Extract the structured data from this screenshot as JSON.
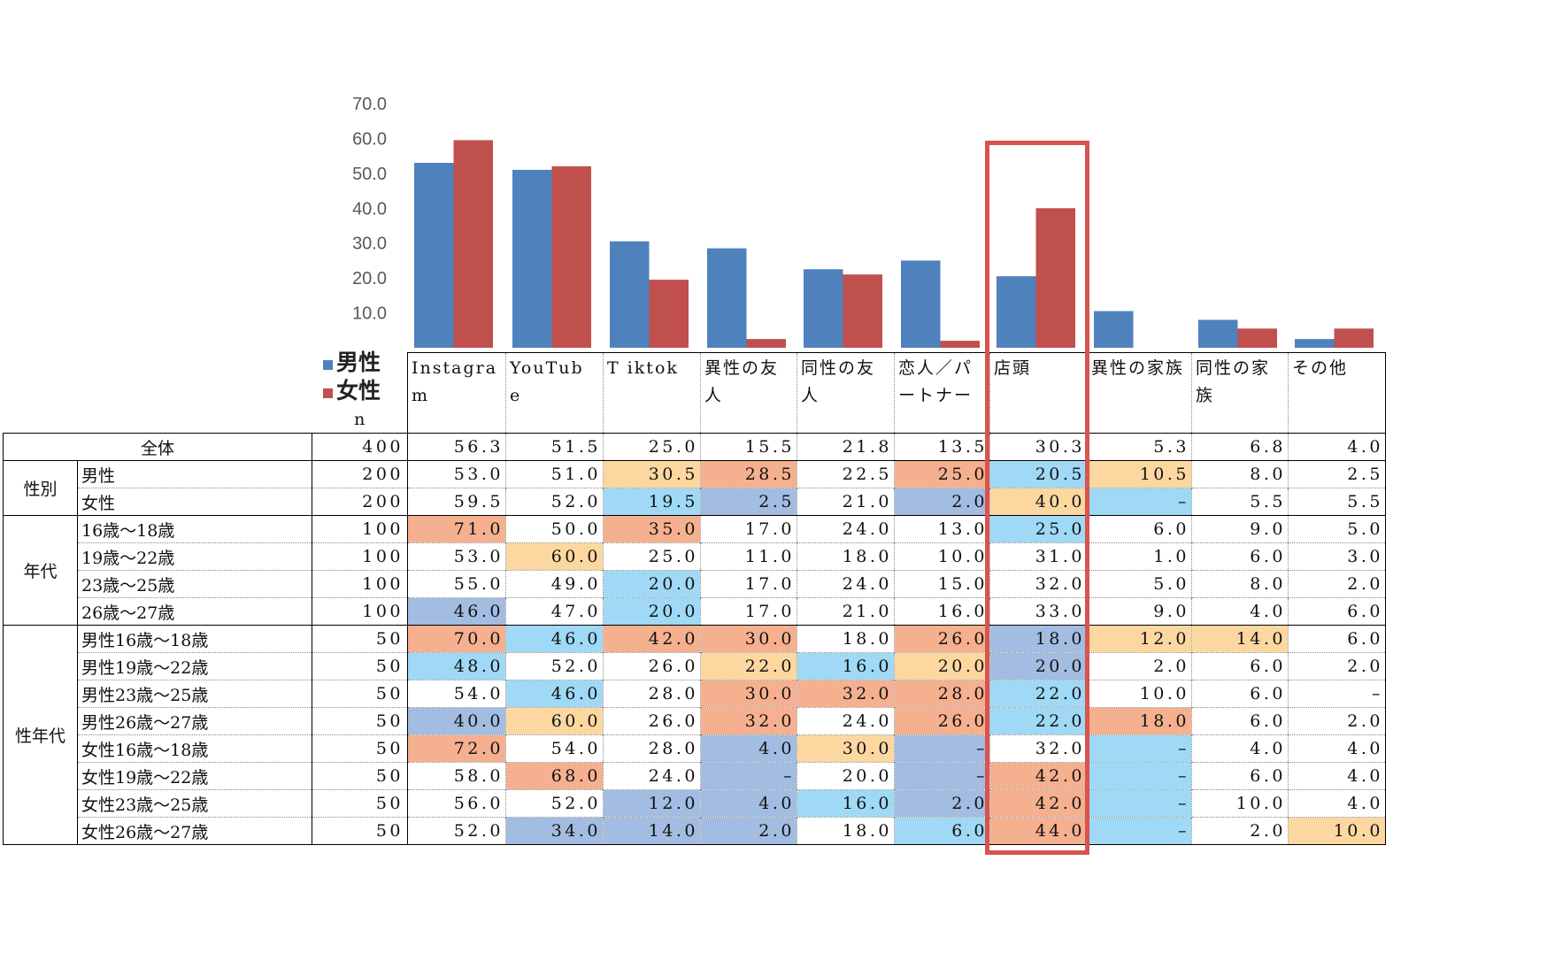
{
  "chart_data": {
    "type": "bar",
    "categories": [
      "Instagram",
      "YouTube",
      "Tiktok",
      "異性の友人",
      "同性の友人",
      "恋人／パートナー",
      "店頭",
      "異性の家族",
      "同性の家族",
      "その他"
    ],
    "series": [
      {
        "name": "男性",
        "color": "#4f81bd",
        "values": [
          53.0,
          51.0,
          30.5,
          28.5,
          22.5,
          25.0,
          20.5,
          10.5,
          8.0,
          2.5
        ]
      },
      {
        "name": "女性",
        "color": "#c0504d",
        "values": [
          59.5,
          52.0,
          19.5,
          2.5,
          21.0,
          2.0,
          40.0,
          0,
          5.5,
          5.5
        ]
      }
    ],
    "yticks": [
      "10.0",
      "20.0",
      "30.0",
      "40.0",
      "50.0",
      "60.0",
      "70.0"
    ],
    "ylim": [
      0,
      70
    ],
    "legend": "left-bottom",
    "highlighted_category": "店頭",
    "highlight_color": "#d9534f"
  },
  "table": {
    "n_label": "n",
    "headers": [
      "Instagra m",
      "YouTub e",
      "T iktok",
      "異性の友人",
      "同性の友人",
      "恋人／パートナー",
      "店頭",
      "異性の家族",
      "同性の家族",
      "その他"
    ],
    "cell_colors": {
      "o": "#f5b090",
      "y": "#fcd7a0",
      "c": "#9fd9f5",
      "b": "#a3bce1"
    },
    "groups": [
      {
        "name": "全体",
        "rows": [
          {
            "label": "全体",
            "n": "400",
            "values": [
              "56.3",
              "51.5",
              "25.0",
              "15.5",
              "21.8",
              "13.5",
              "30.3",
              "5.3",
              "6.8",
              "4.0"
            ],
            "colors": [
              "",
              "",
              "",
              "",
              "",
              "",
              "",
              "",
              "",
              ""
            ]
          }
        ]
      },
      {
        "name": "性別",
        "rows": [
          {
            "label": "男性",
            "n": "200",
            "values": [
              "53.0",
              "51.0",
              "30.5",
              "28.5",
              "22.5",
              "25.0",
              "20.5",
              "10.5",
              "8.0",
              "2.5"
            ],
            "colors": [
              "",
              "",
              "y",
              "o",
              "",
              "o",
              "c",
              "y",
              "",
              ""
            ]
          },
          {
            "label": "女性",
            "n": "200",
            "values": [
              "59.5",
              "52.0",
              "19.5",
              "2.5",
              "21.0",
              "2.0",
              "40.0",
              "–",
              "5.5",
              "5.5"
            ],
            "colors": [
              "",
              "",
              "c",
              "b",
              "",
              "b",
              "y",
              "c",
              "",
              ""
            ]
          }
        ]
      },
      {
        "name": "年代",
        "rows": [
          {
            "label": "16歳～18歳",
            "n": "100",
            "values": [
              "71.0",
              "50.0",
              "35.0",
              "17.0",
              "24.0",
              "13.0",
              "25.0",
              "6.0",
              "9.0",
              "5.0"
            ],
            "colors": [
              "o",
              "",
              "o",
              "",
              "",
              "",
              "c",
              "",
              "",
              ""
            ]
          },
          {
            "label": "19歳～22歳",
            "n": "100",
            "values": [
              "53.0",
              "60.0",
              "25.0",
              "11.0",
              "18.0",
              "10.0",
              "31.0",
              "1.0",
              "6.0",
              "3.0"
            ],
            "colors": [
              "",
              "y",
              "",
              "",
              "",
              "",
              "",
              "",
              "",
              ""
            ]
          },
          {
            "label": "23歳～25歳",
            "n": "100",
            "values": [
              "55.0",
              "49.0",
              "20.0",
              "17.0",
              "24.0",
              "15.0",
              "32.0",
              "5.0",
              "8.0",
              "2.0"
            ],
            "colors": [
              "",
              "",
              "c",
              "",
              "",
              "",
              "",
              "",
              "",
              ""
            ]
          },
          {
            "label": "26歳～27歳",
            "n": "100",
            "values": [
              "46.0",
              "47.0",
              "20.0",
              "17.0",
              "21.0",
              "16.0",
              "33.0",
              "9.0",
              "4.0",
              "6.0"
            ],
            "colors": [
              "b",
              "",
              "c",
              "",
              "",
              "",
              "",
              "",
              "",
              ""
            ]
          }
        ]
      },
      {
        "name": "性年代",
        "rows": [
          {
            "label": "男性16歳～18歳",
            "n": "50",
            "values": [
              "70.0",
              "46.0",
              "42.0",
              "30.0",
              "18.0",
              "26.0",
              "18.0",
              "12.0",
              "14.0",
              "6.0"
            ],
            "colors": [
              "o",
              "c",
              "o",
              "o",
              "",
              "o",
              "b",
              "y",
              "y",
              ""
            ]
          },
          {
            "label": "男性19歳～22歳",
            "n": "50",
            "values": [
              "48.0",
              "52.0",
              "26.0",
              "22.0",
              "16.0",
              "20.0",
              "20.0",
              "2.0",
              "6.0",
              "2.0"
            ],
            "colors": [
              "c",
              "",
              "",
              "y",
              "c",
              "y",
              "b",
              "",
              "",
              ""
            ]
          },
          {
            "label": "男性23歳～25歳",
            "n": "50",
            "values": [
              "54.0",
              "46.0",
              "28.0",
              "30.0",
              "32.0",
              "28.0",
              "22.0",
              "10.0",
              "6.0",
              "–"
            ],
            "colors": [
              "",
              "c",
              "",
              "o",
              "o",
              "o",
              "c",
              "",
              "",
              ""
            ]
          },
          {
            "label": "男性26歳～27歳",
            "n": "50",
            "values": [
              "40.0",
              "60.0",
              "26.0",
              "32.0",
              "24.0",
              "26.0",
              "22.0",
              "18.0",
              "6.0",
              "2.0"
            ],
            "colors": [
              "b",
              "y",
              "",
              "o",
              "",
              "o",
              "c",
              "o",
              "",
              ""
            ]
          },
          {
            "label": "女性16歳～18歳",
            "n": "50",
            "values": [
              "72.0",
              "54.0",
              "28.0",
              "4.0",
              "30.0",
              "–",
              "32.0",
              "–",
              "4.0",
              "4.0"
            ],
            "colors": [
              "o",
              "",
              "",
              "b",
              "y",
              "b",
              "",
              "c",
              "",
              ""
            ]
          },
          {
            "label": "女性19歳～22歳",
            "n": "50",
            "values": [
              "58.0",
              "68.0",
              "24.0",
              "–",
              "20.0",
              "–",
              "42.0",
              "–",
              "6.0",
              "4.0"
            ],
            "colors": [
              "",
              "o",
              "",
              "b",
              "",
              "b",
              "o",
              "c",
              "",
              ""
            ]
          },
          {
            "label": "女性23歳～25歳",
            "n": "50",
            "values": [
              "56.0",
              "52.0",
              "12.0",
              "4.0",
              "16.0",
              "2.0",
              "42.0",
              "–",
              "10.0",
              "4.0"
            ],
            "colors": [
              "",
              "",
              "b",
              "b",
              "c",
              "b",
              "o",
              "c",
              "",
              ""
            ]
          },
          {
            "label": "女性26歳～27歳",
            "n": "50",
            "values": [
              "52.0",
              "34.0",
              "14.0",
              "2.0",
              "18.0",
              "6.0",
              "44.0",
              "–",
              "2.0",
              "10.0"
            ],
            "colors": [
              "",
              "b",
              "b",
              "b",
              "",
              "c",
              "o",
              "c",
              "",
              "y"
            ]
          }
        ]
      }
    ]
  }
}
